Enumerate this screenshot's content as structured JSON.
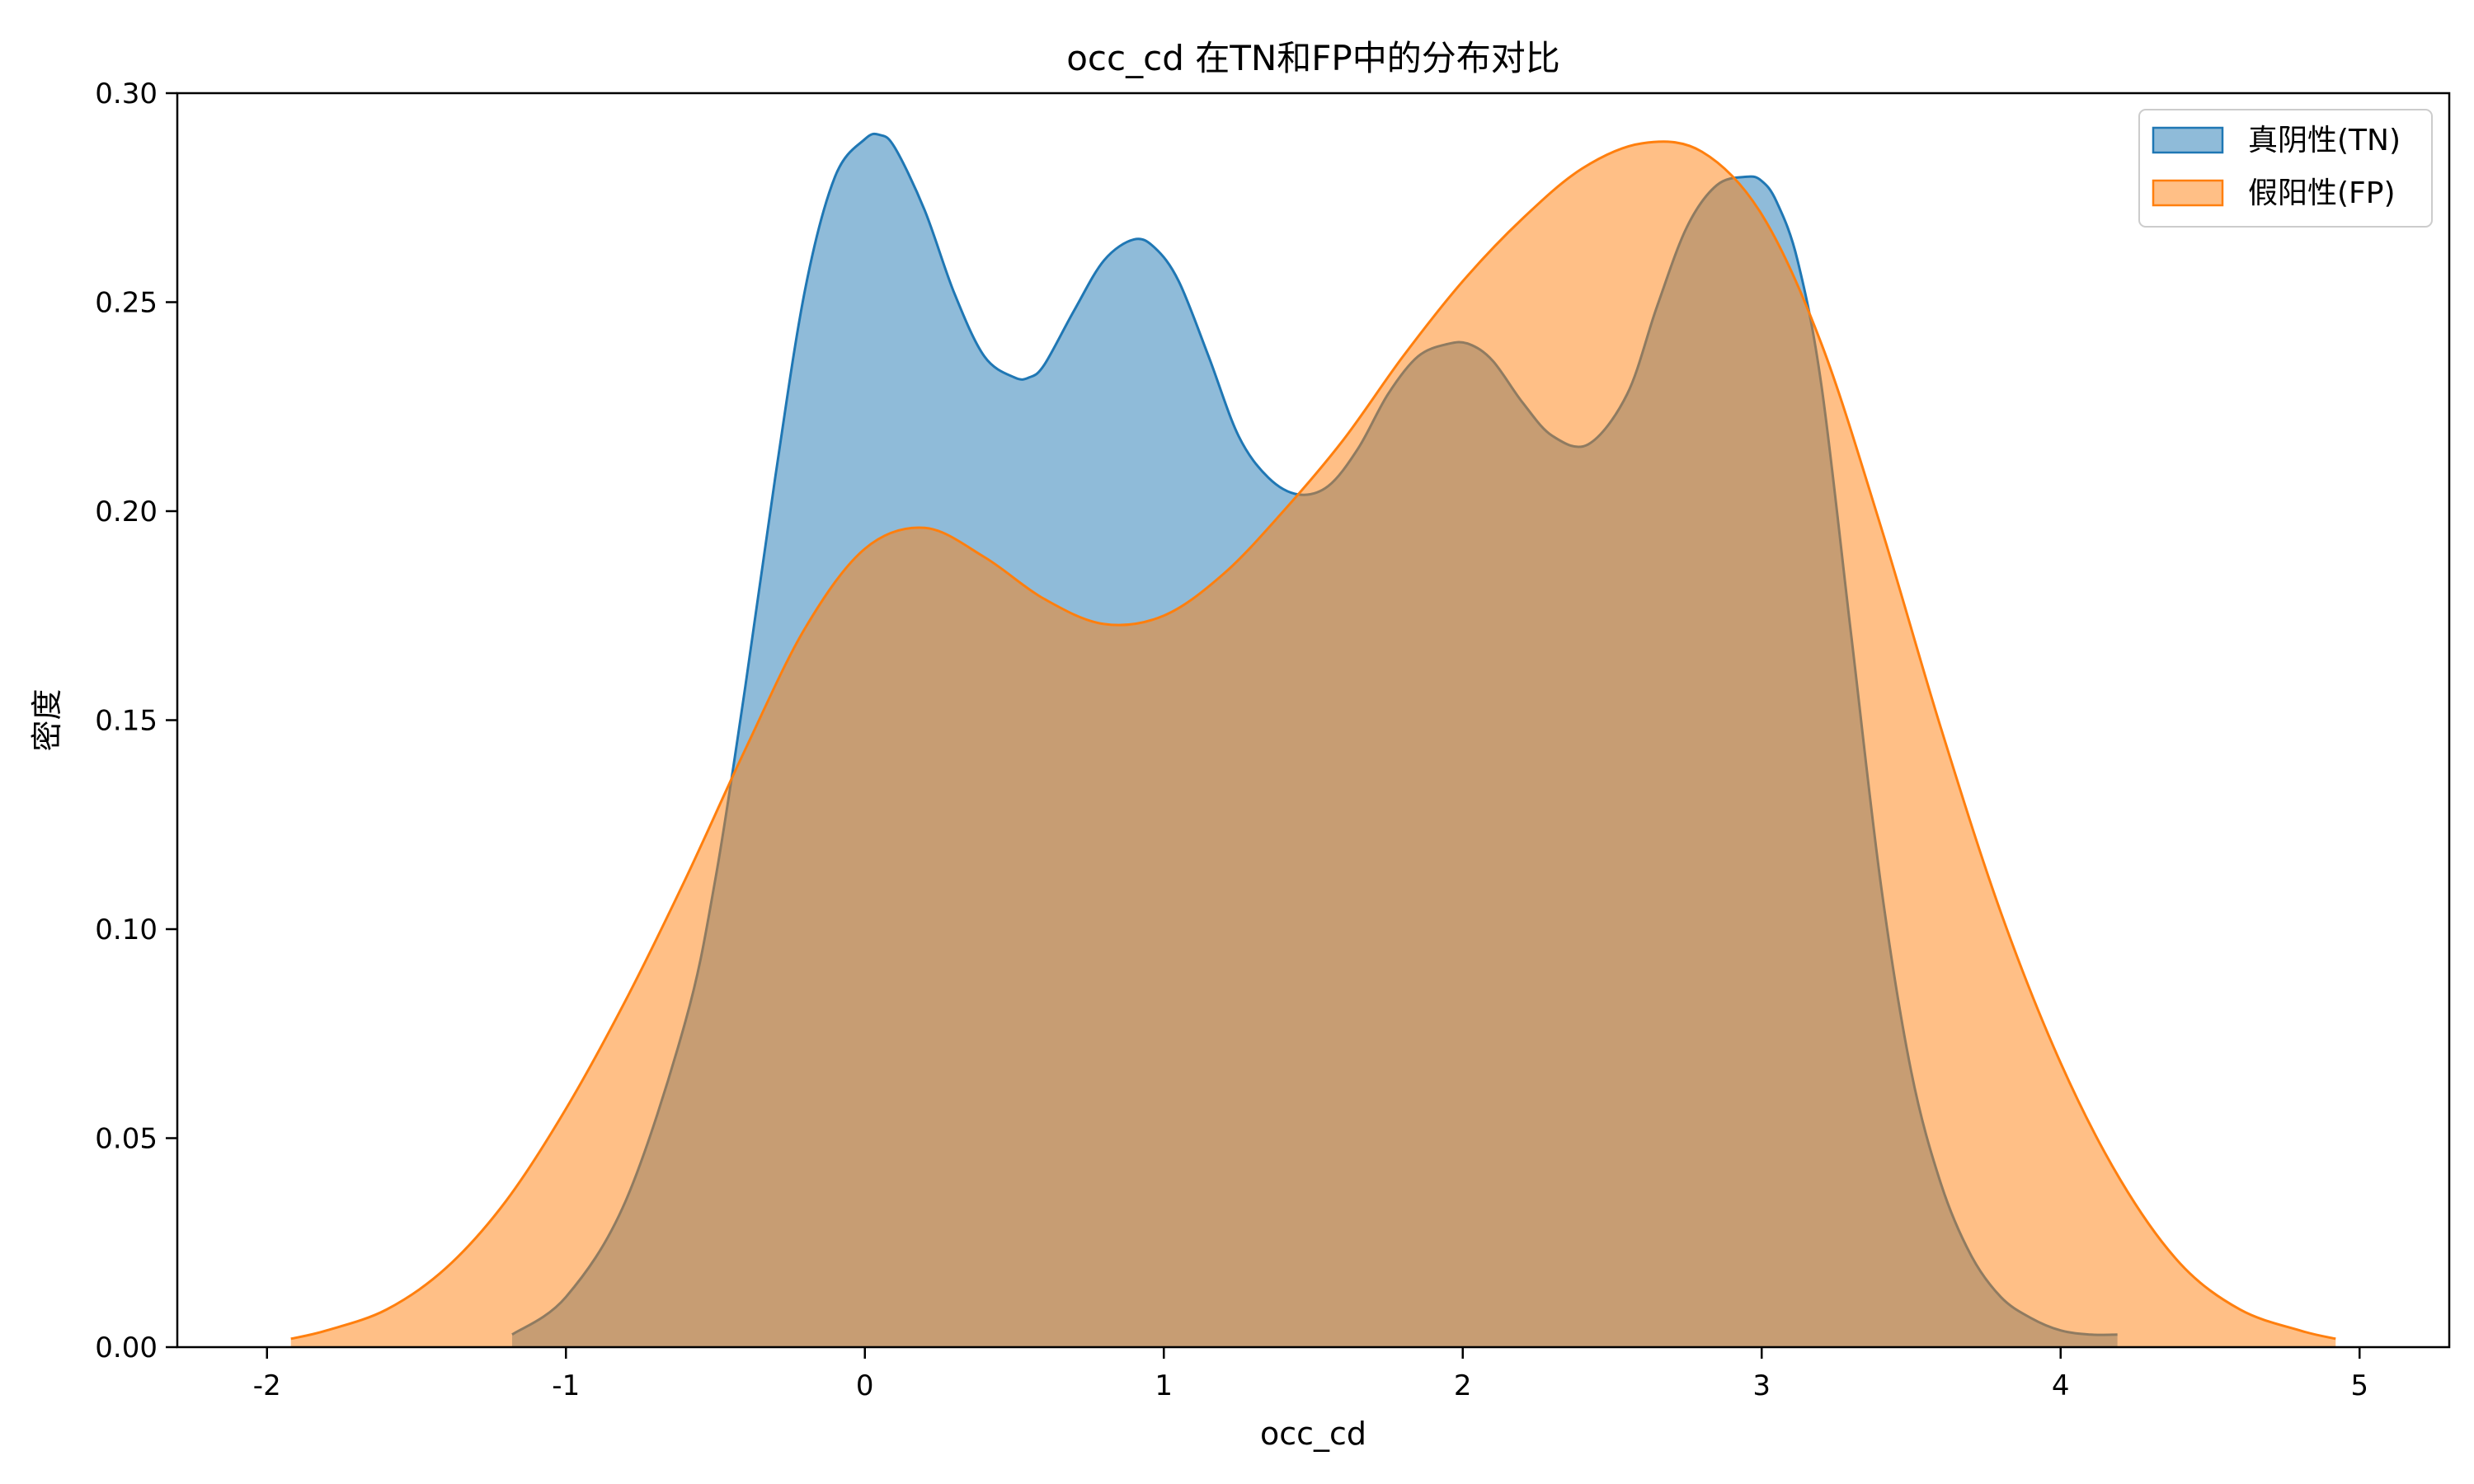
{
  "chart_data": {
    "type": "area",
    "title": "occ_cd 在TN和FP中的分布对比",
    "xlabel": "occ_cd",
    "ylabel": "密度",
    "xlim": [
      -2.3,
      5.3
    ],
    "ylim": [
      0.0,
      0.3
    ],
    "x_ticks": [
      -2,
      -1,
      0,
      1,
      2,
      3,
      4,
      5
    ],
    "x_tick_labels": [
      "-2",
      "-1",
      "0",
      "1",
      "2",
      "3",
      "4",
      "5"
    ],
    "y_ticks": [
      0.0,
      0.05,
      0.1,
      0.15,
      0.2,
      0.25,
      0.3
    ],
    "y_tick_labels": [
      "0.00",
      "0.05",
      "0.10",
      "0.15",
      "0.20",
      "0.25",
      "0.30"
    ],
    "grid": false,
    "legend_position": "top-right",
    "series": [
      {
        "name": "真阴性(TN)",
        "color": "#1f77b4",
        "fill": "#1f77b4",
        "fill_opacity": 0.5,
        "x": [
          -1.18,
          -1.0,
          -0.8,
          -0.6,
          -0.5,
          -0.4,
          -0.3,
          -0.2,
          -0.1,
          0.0,
          0.05,
          0.1,
          0.2,
          0.3,
          0.4,
          0.5,
          0.55,
          0.6,
          0.7,
          0.8,
          0.9,
          0.97,
          1.05,
          1.15,
          1.25,
          1.35,
          1.45,
          1.55,
          1.65,
          1.75,
          1.85,
          1.95,
          2.02,
          2.1,
          2.2,
          2.3,
          2.42,
          2.55,
          2.65,
          2.75,
          2.85,
          2.95,
          3.0,
          3.05,
          3.12,
          3.2,
          3.3,
          3.4,
          3.5,
          3.6,
          3.7,
          3.8,
          3.9,
          4.0,
          4.1,
          4.19
        ],
        "y": [
          0.003,
          0.012,
          0.035,
          0.078,
          0.112,
          0.158,
          0.208,
          0.253,
          0.28,
          0.289,
          0.29,
          0.287,
          0.272,
          0.252,
          0.237,
          0.232,
          0.232,
          0.235,
          0.248,
          0.26,
          0.265,
          0.263,
          0.255,
          0.237,
          0.218,
          0.208,
          0.204,
          0.206,
          0.215,
          0.228,
          0.237,
          0.24,
          0.24,
          0.236,
          0.226,
          0.218,
          0.216,
          0.228,
          0.249,
          0.268,
          0.278,
          0.28,
          0.279,
          0.274,
          0.26,
          0.23,
          0.17,
          0.11,
          0.066,
          0.039,
          0.022,
          0.012,
          0.007,
          0.004,
          0.003,
          0.003
        ]
      },
      {
        "name": "假阳性(FP)",
        "color": "#ff7f0e",
        "fill": "#ff7f0e",
        "fill_opacity": 0.5,
        "x": [
          -1.92,
          -1.8,
          -1.6,
          -1.4,
          -1.2,
          -1.0,
          -0.8,
          -0.6,
          -0.4,
          -0.2,
          0.0,
          0.2,
          0.4,
          0.6,
          0.8,
          1.0,
          1.2,
          1.4,
          1.6,
          1.8,
          2.0,
          2.2,
          2.4,
          2.6,
          2.8,
          3.0,
          3.2,
          3.4,
          3.6,
          3.8,
          4.0,
          4.2,
          4.4,
          4.6,
          4.8,
          4.92
        ],
        "y": [
          0.002,
          0.004,
          0.009,
          0.019,
          0.035,
          0.057,
          0.083,
          0.112,
          0.143,
          0.172,
          0.191,
          0.196,
          0.189,
          0.179,
          0.173,
          0.175,
          0.185,
          0.2,
          0.217,
          0.237,
          0.255,
          0.27,
          0.282,
          0.288,
          0.286,
          0.271,
          0.24,
          0.196,
          0.148,
          0.104,
          0.068,
          0.04,
          0.02,
          0.009,
          0.004,
          0.002
        ]
      }
    ]
  }
}
